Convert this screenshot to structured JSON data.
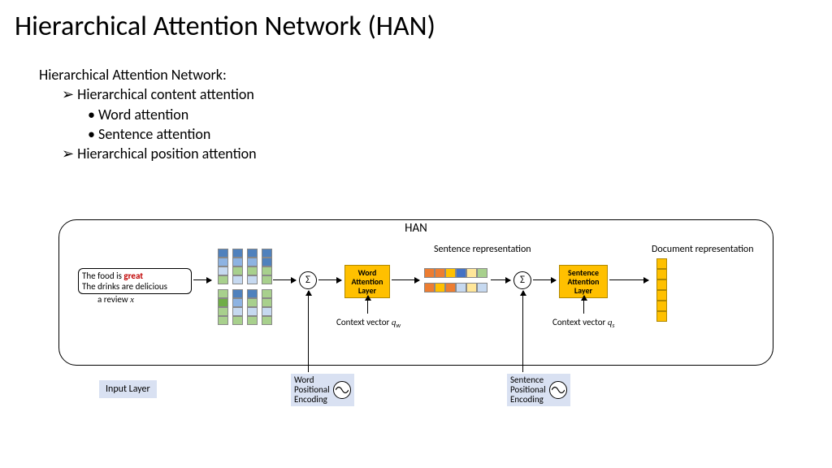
{
  "title": "Hierarchical Attention Network (HAN)",
  "bullets": {
    "heading": "Hierarchical Attention Network:",
    "l2a": "Hierarchical content attention",
    "l3a": "Word attention",
    "l3b": "Sentence attention",
    "l2b": "Hierarchical position attention"
  },
  "diagram": {
    "han_label": "HAN",
    "review_line1_pre": "The  food  is   ",
    "review_line1_great": "great",
    "review_line2": "The drinks are delicious",
    "review_caption_pre": "a review ",
    "review_caption_var": "x",
    "sigma": "Σ",
    "word_attn": "Word\nAttention\nLayer",
    "sentence_attn": "Sentence\nAttention\nLayer",
    "sentence_rep_label": "Sentence representation",
    "doc_rep_label": "Document representation",
    "context_w_pre": "Context vector ",
    "context_w_var": "q",
    "context_w_sub": "w",
    "context_s_pre": "Context vector ",
    "context_s_var": "q",
    "context_s_sub": "s",
    "input_layer": "Input Layer",
    "word_pos_enc": "Word\nPositional\nEncoding",
    "sent_pos_enc": "Sentence\nPositional\nEncoding"
  },
  "colors": {
    "block_top_colors": [
      [
        "#4f81bd",
        "#4f81bd",
        "#4f81bd",
        "#4f81bd"
      ],
      [
        "#8db3e2",
        "#8db3e2",
        "#8db3e2",
        "#4f81bd"
      ],
      [
        "#c6d9f0",
        "#a8d08d",
        "#a8d08d",
        "#a8d08d"
      ],
      [
        "#a8d08d",
        "#c6d9f0",
        "#c6d9f0",
        "#a8d08d"
      ]
    ],
    "block_bot_colors": [
      [
        "#a8d08d",
        "#4f81bd",
        "#4f81bd",
        "#a8d08d"
      ],
      [
        "#70ad47",
        "#8db3e2",
        "#a8d08d",
        "#a8d08d"
      ],
      [
        "#a8d08d",
        "#c6d9f0",
        "#c6d9f0",
        "#c6d9f0"
      ],
      [
        "#a8d08d",
        "#a8d08d",
        "#a8d08d",
        "#a8d08d"
      ]
    ],
    "sent_rep_row1": [
      "#ed7d31",
      "#ed7d31",
      "#ffc000",
      "#4472c4",
      "#ffe699",
      "#a8d08d"
    ],
    "sent_rep_row2": [
      "#ed7d31",
      "#ffc000",
      "#ed7d31",
      "#c6d9f0",
      "#ffe699",
      "#c6d9f0"
    ],
    "doc_rep": [
      "#ffc000",
      "#ffc000",
      "#ffc000",
      "#ffc000",
      "#ffc000",
      "#ffc000"
    ]
  }
}
